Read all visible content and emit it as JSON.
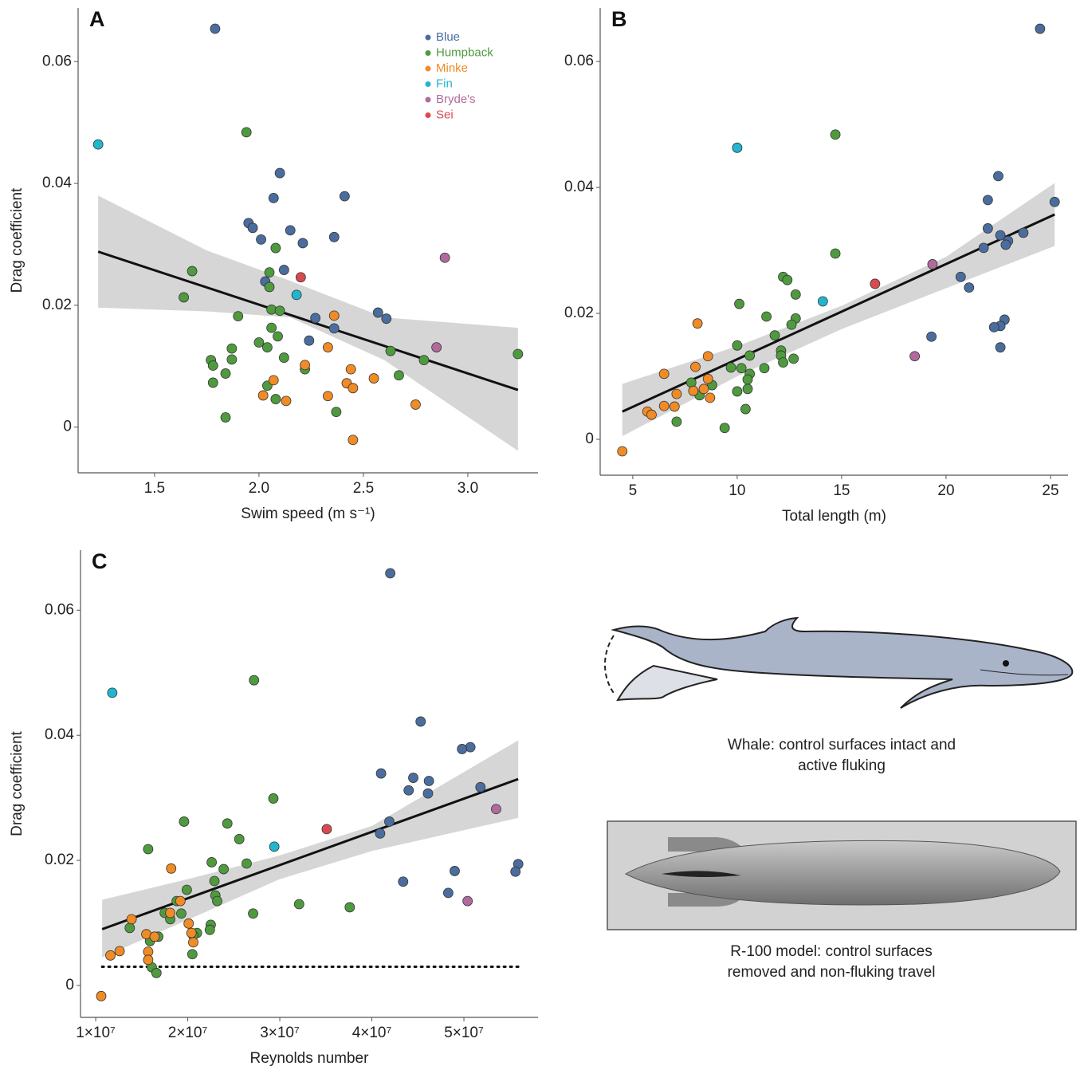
{
  "chart_data": [
    {
      "type": "scatter",
      "panel": "A",
      "x_label": "Swim speed (m s⁻¹)",
      "y_label": "Drag coefficient",
      "xlim": [
        1.134,
        3.336
      ],
      "ylim": [
        -0.0075,
        0.0688
      ],
      "xticks": [
        1.5,
        {
          "value": 2,
          "label": "2.0"
        },
        2.5,
        {
          "value": 3,
          "label": "3.0"
        }
      ],
      "yticks": [
        0,
        0.02,
        0.04,
        0.06
      ],
      "legend": "top-right",
      "series": [
        {
          "name": "Blue",
          "color": "#4a6d9e",
          "x": [
            1.79,
            1.95,
            1.97,
            2.01,
            2.07,
            2.1,
            2.15,
            2.21,
            2.12,
            2.03,
            2.27,
            2.24,
            2.36,
            2.36,
            2.41,
            2.57,
            2.61
          ],
          "values": [
            0.0654,
            0.0335,
            0.0327,
            0.0308,
            0.0376,
            0.0417,
            0.0323,
            0.0302,
            0.0258,
            0.0239,
            0.0179,
            0.0142,
            0.0162,
            0.0312,
            0.0379,
            0.0188,
            0.0178
          ]
        },
        {
          "name": "Humpback",
          "color": "#4f9a3e",
          "x": [
            1.94,
            1.68,
            1.64,
            1.77,
            1.78,
            1.78,
            1.84,
            1.87,
            1.87,
            1.9,
            1.84,
            2.08,
            2.05,
            2.05,
            2.06,
            2.1,
            2.06,
            2.0,
            2.04,
            2.09,
            2.22,
            2.12,
            2.04,
            2.08,
            2.37,
            2.63,
            2.67,
            2.79,
            3.24
          ],
          "values": [
            0.0484,
            0.0256,
            0.0213,
            0.011,
            0.0101,
            0.0073,
            0.0088,
            0.0129,
            0.0111,
            0.0182,
            0.0016,
            0.0294,
            0.023,
            0.0254,
            0.0193,
            0.0191,
            0.0163,
            0.0139,
            0.0131,
            0.0149,
            0.0095,
            0.0114,
            0.0068,
            0.0046,
            0.0025,
            0.0125,
            0.0085,
            0.011,
            0.012
          ]
        },
        {
          "name": "Minke",
          "color": "#f08b25",
          "x": [
            2.07,
            2.02,
            2.13,
            2.22,
            2.33,
            2.36,
            2.33,
            2.44,
            2.42,
            2.45,
            2.55,
            2.75,
            2.45
          ],
          "values": [
            0.0077,
            0.0052,
            0.0043,
            0.0102,
            0.0131,
            0.0183,
            0.0051,
            0.0095,
            0.0072,
            0.0064,
            0.008,
            0.0037,
            -0.0021
          ]
        },
        {
          "name": "Fin",
          "color": "#22b5cf",
          "x": [
            1.23,
            2.18
          ],
          "values": [
            0.0464,
            0.0217
          ]
        },
        {
          "name": "Bryde's",
          "color": "#b06a9c",
          "x": [
            2.89,
            2.85
          ],
          "values": [
            0.0278,
            0.0131
          ]
        },
        {
          "name": "Sei",
          "color": "#d94a4f",
          "x": [
            2.2
          ],
          "values": [
            0.0246
          ]
        }
      ],
      "fit": {
        "x": [
          1.23,
          3.24
        ],
        "y": [
          0.0288,
          0.0061
        ]
      },
      "ci": {
        "x": [
          1.23,
          1.75,
          2.15,
          2.6,
          3.24
        ],
        "upper": [
          0.038,
          0.029,
          0.024,
          0.018,
          0.0163
        ],
        "lower": [
          0.0196,
          0.019,
          0.018,
          0.011,
          -0.0039
        ]
      }
    },
    {
      "type": "scatter",
      "panel": "B",
      "x_label": "Total length (m)",
      "xlim": [
        3.44,
        25.84
      ],
      "ylim": [
        -0.0057,
        0.0685
      ],
      "xticks": [
        5,
        10,
        15,
        20,
        25
      ],
      "yticks": [
        0,
        0.02,
        0.04,
        0.06
      ],
      "series": [
        {
          "color": "#4a6d9e",
          "x": [
            24.5,
            22.5,
            22.0,
            25.2,
            22.0,
            22.6,
            23.7,
            22.97,
            22.86,
            21.8,
            20.7,
            21.1,
            19.3,
            22.8,
            22.6,
            22.3,
            22.6
          ],
          "values": [
            0.0652,
            0.0418,
            0.038,
            0.0377,
            0.0335,
            0.0324,
            0.0328,
            0.0315,
            0.0309,
            0.0304,
            0.0258,
            0.0241,
            0.0163,
            0.019,
            0.018,
            0.0178,
            0.0146
          ]
        },
        {
          "color": "#4f9a3e",
          "x": [
            14.7,
            14.7,
            12.2,
            12.4,
            10.1,
            12.8,
            11.4,
            12.8,
            12.6,
            11.8,
            12.1,
            12.1,
            10.0,
            10.6,
            9.7,
            10.2,
            10.6,
            12.2,
            12.7,
            11.3,
            10.5,
            10.0,
            10.5,
            7.8,
            8.2,
            8.8,
            10.4,
            7.1,
            9.4
          ],
          "values": [
            0.0484,
            0.0295,
            0.0258,
            0.0253,
            0.0215,
            0.023,
            0.0195,
            0.0192,
            0.0182,
            0.0165,
            0.0141,
            0.0133,
            0.0149,
            0.0133,
            0.0114,
            0.0113,
            0.0104,
            0.0122,
            0.0128,
            0.0113,
            0.0095,
            0.0076,
            0.008,
            0.009,
            0.007,
            0.0086,
            0.0048,
            0.0028,
            0.0018
          ]
        },
        {
          "color": "#f08b25",
          "x": [
            8.1,
            8.6,
            8.0,
            6.5,
            7.9,
            8.4,
            8.6,
            7.1,
            8.7,
            6.5,
            7.0,
            5.7,
            5.9,
            4.5
          ],
          "values": [
            0.0184,
            0.0132,
            0.0115,
            0.0104,
            0.0077,
            0.008,
            0.0096,
            0.0072,
            0.0066,
            0.0053,
            0.0052,
            0.0044,
            0.0039,
            -0.0019
          ]
        },
        {
          "color": "#22b5cf",
          "x": [
            10.0,
            14.1
          ],
          "values": [
            0.0463,
            0.0219
          ]
        },
        {
          "color": "#b06a9c",
          "x": [
            19.35,
            18.5
          ],
          "values": [
            0.0278,
            0.0132
          ]
        },
        {
          "color": "#d94a4f",
          "x": [
            16.6
          ],
          "values": [
            0.0247
          ]
        }
      ],
      "fit": {
        "x": [
          4.5,
          25.2
        ],
        "y": [
          0.0044,
          0.0357
        ]
      },
      "ci": {
        "x": [
          4.5,
          10,
          15,
          20,
          25.2
        ],
        "upper": [
          0.0088,
          0.0148,
          0.0212,
          0.029,
          0.0407
        ],
        "lower": [
          0.0005,
          0.01,
          0.0175,
          0.024,
          0.0307
        ]
      }
    },
    {
      "type": "scatter",
      "panel": "C",
      "x_label": "Reynolds number",
      "y_label": "Drag coefficient",
      "xlim": [
        8350000.0,
        58050000.0
      ],
      "ylim": [
        -0.0051,
        0.0696
      ],
      "xticks": [
        {
          "value": 10000000.0,
          "label": "1×10⁷"
        },
        {
          "value": 20000000.0,
          "label": "2×10⁷"
        },
        {
          "value": 30000000.0,
          "label": "3×10⁷"
        },
        {
          "value": 40000000.0,
          "label": "4×10⁷"
        },
        {
          "value": 50000000.0,
          "label": "5×10⁷"
        }
      ],
      "yticks": [
        0,
        0.02,
        0.04,
        0.06
      ],
      "series": [
        {
          "color": "#4a6d9e",
          "x": [
            42000000.0,
            45300000.0,
            41000000.0,
            44500000.0,
            46200000.0,
            44000000.0,
            46100000.0,
            41900000.0,
            40900000.0,
            50700000.0,
            49800000.0,
            51800000.0,
            55900000.0,
            55600000.0,
            49000000.0,
            43400000.0,
            48300000.0
          ],
          "values": [
            0.0659,
            0.0422,
            0.0339,
            0.0332,
            0.0327,
            0.0312,
            0.0307,
            0.0262,
            0.0243,
            0.0381,
            0.0378,
            0.0317,
            0.0194,
            0.0182,
            0.0183,
            0.0166,
            0.0148
          ]
        },
        {
          "color": "#4f9a3e",
          "x": [
            27200000.0,
            29300000.0,
            19600000.0,
            24300000.0,
            25600000.0,
            15700000.0,
            26400000.0,
            22600000.0,
            23900000.0,
            22900000.0,
            19900000.0,
            18800000.0,
            23000000.0,
            23200000.0,
            27100000.0,
            32100000.0,
            37600000.0,
            17500000.0,
            19300000.0,
            18100000.0,
            22500000.0,
            22400000.0,
            21000000.0,
            20600000.0,
            13700000.0,
            16800000.0,
            15900000.0,
            20500000.0,
            16100000.0,
            16600000.0
          ],
          "values": [
            0.0488,
            0.0299,
            0.0262,
            0.0259,
            0.0234,
            0.0218,
            0.0195,
            0.0197,
            0.0186,
            0.0167,
            0.0153,
            0.0135,
            0.0144,
            0.0135,
            0.0115,
            0.013,
            0.0125,
            0.0116,
            0.0115,
            0.0106,
            0.0097,
            0.0089,
            0.0084,
            0.008,
            0.0092,
            0.0078,
            0.0071,
            0.005,
            0.0029,
            0.002
          ]
        },
        {
          "color": "#f08b25",
          "x": [
            18200000.0,
            19200000.0,
            18100000.0,
            20100000.0,
            15500000.0,
            20400000.0,
            16400000.0,
            13900000.0,
            20600000.0,
            12600000.0,
            11600000.0,
            15700000.0,
            15700000.0,
            10600000.0
          ],
          "values": [
            0.0187,
            0.0135,
            0.0116,
            0.0099,
            0.0082,
            0.0084,
            0.0078,
            0.0106,
            0.0069,
            0.0055,
            0.0048,
            0.0054,
            0.0041,
            -0.0017
          ]
        },
        {
          "color": "#22b5cf",
          "x": [
            11800000.0,
            29400000.0
          ],
          "values": [
            0.0468,
            0.0222
          ]
        },
        {
          "color": "#b06a9c",
          "x": [
            53500000.0,
            50400000.0
          ],
          "values": [
            0.0282,
            0.0135
          ]
        },
        {
          "color": "#d94a4f",
          "x": [
            35100000.0
          ],
          "values": [
            0.025
          ]
        }
      ],
      "fit": {
        "x": [
          10700000.0,
          55900000.0
        ],
        "y": [
          0.009,
          0.033
        ]
      },
      "ci": {
        "x": [
          10700000.0,
          20000000.0,
          30000000.0,
          40000000.0,
          55900000.0
        ],
        "upper": [
          0.0137,
          0.017,
          0.0208,
          0.0255,
          0.0392
        ],
        "lower": [
          0.0045,
          0.0105,
          0.017,
          0.0215,
          0.0268
        ]
      },
      "reference_line": {
        "x": [
          10700000.0,
          55900000.0
        ],
        "y": [
          0.003,
          0.003
        ]
      }
    }
  ],
  "illustrations": [
    {
      "caption": [
        "Whale: control surfaces intact and",
        "active fluking"
      ]
    },
    {
      "caption": [
        "R-100 model: control surfaces",
        "removed and non-fluking travel"
      ]
    }
  ]
}
